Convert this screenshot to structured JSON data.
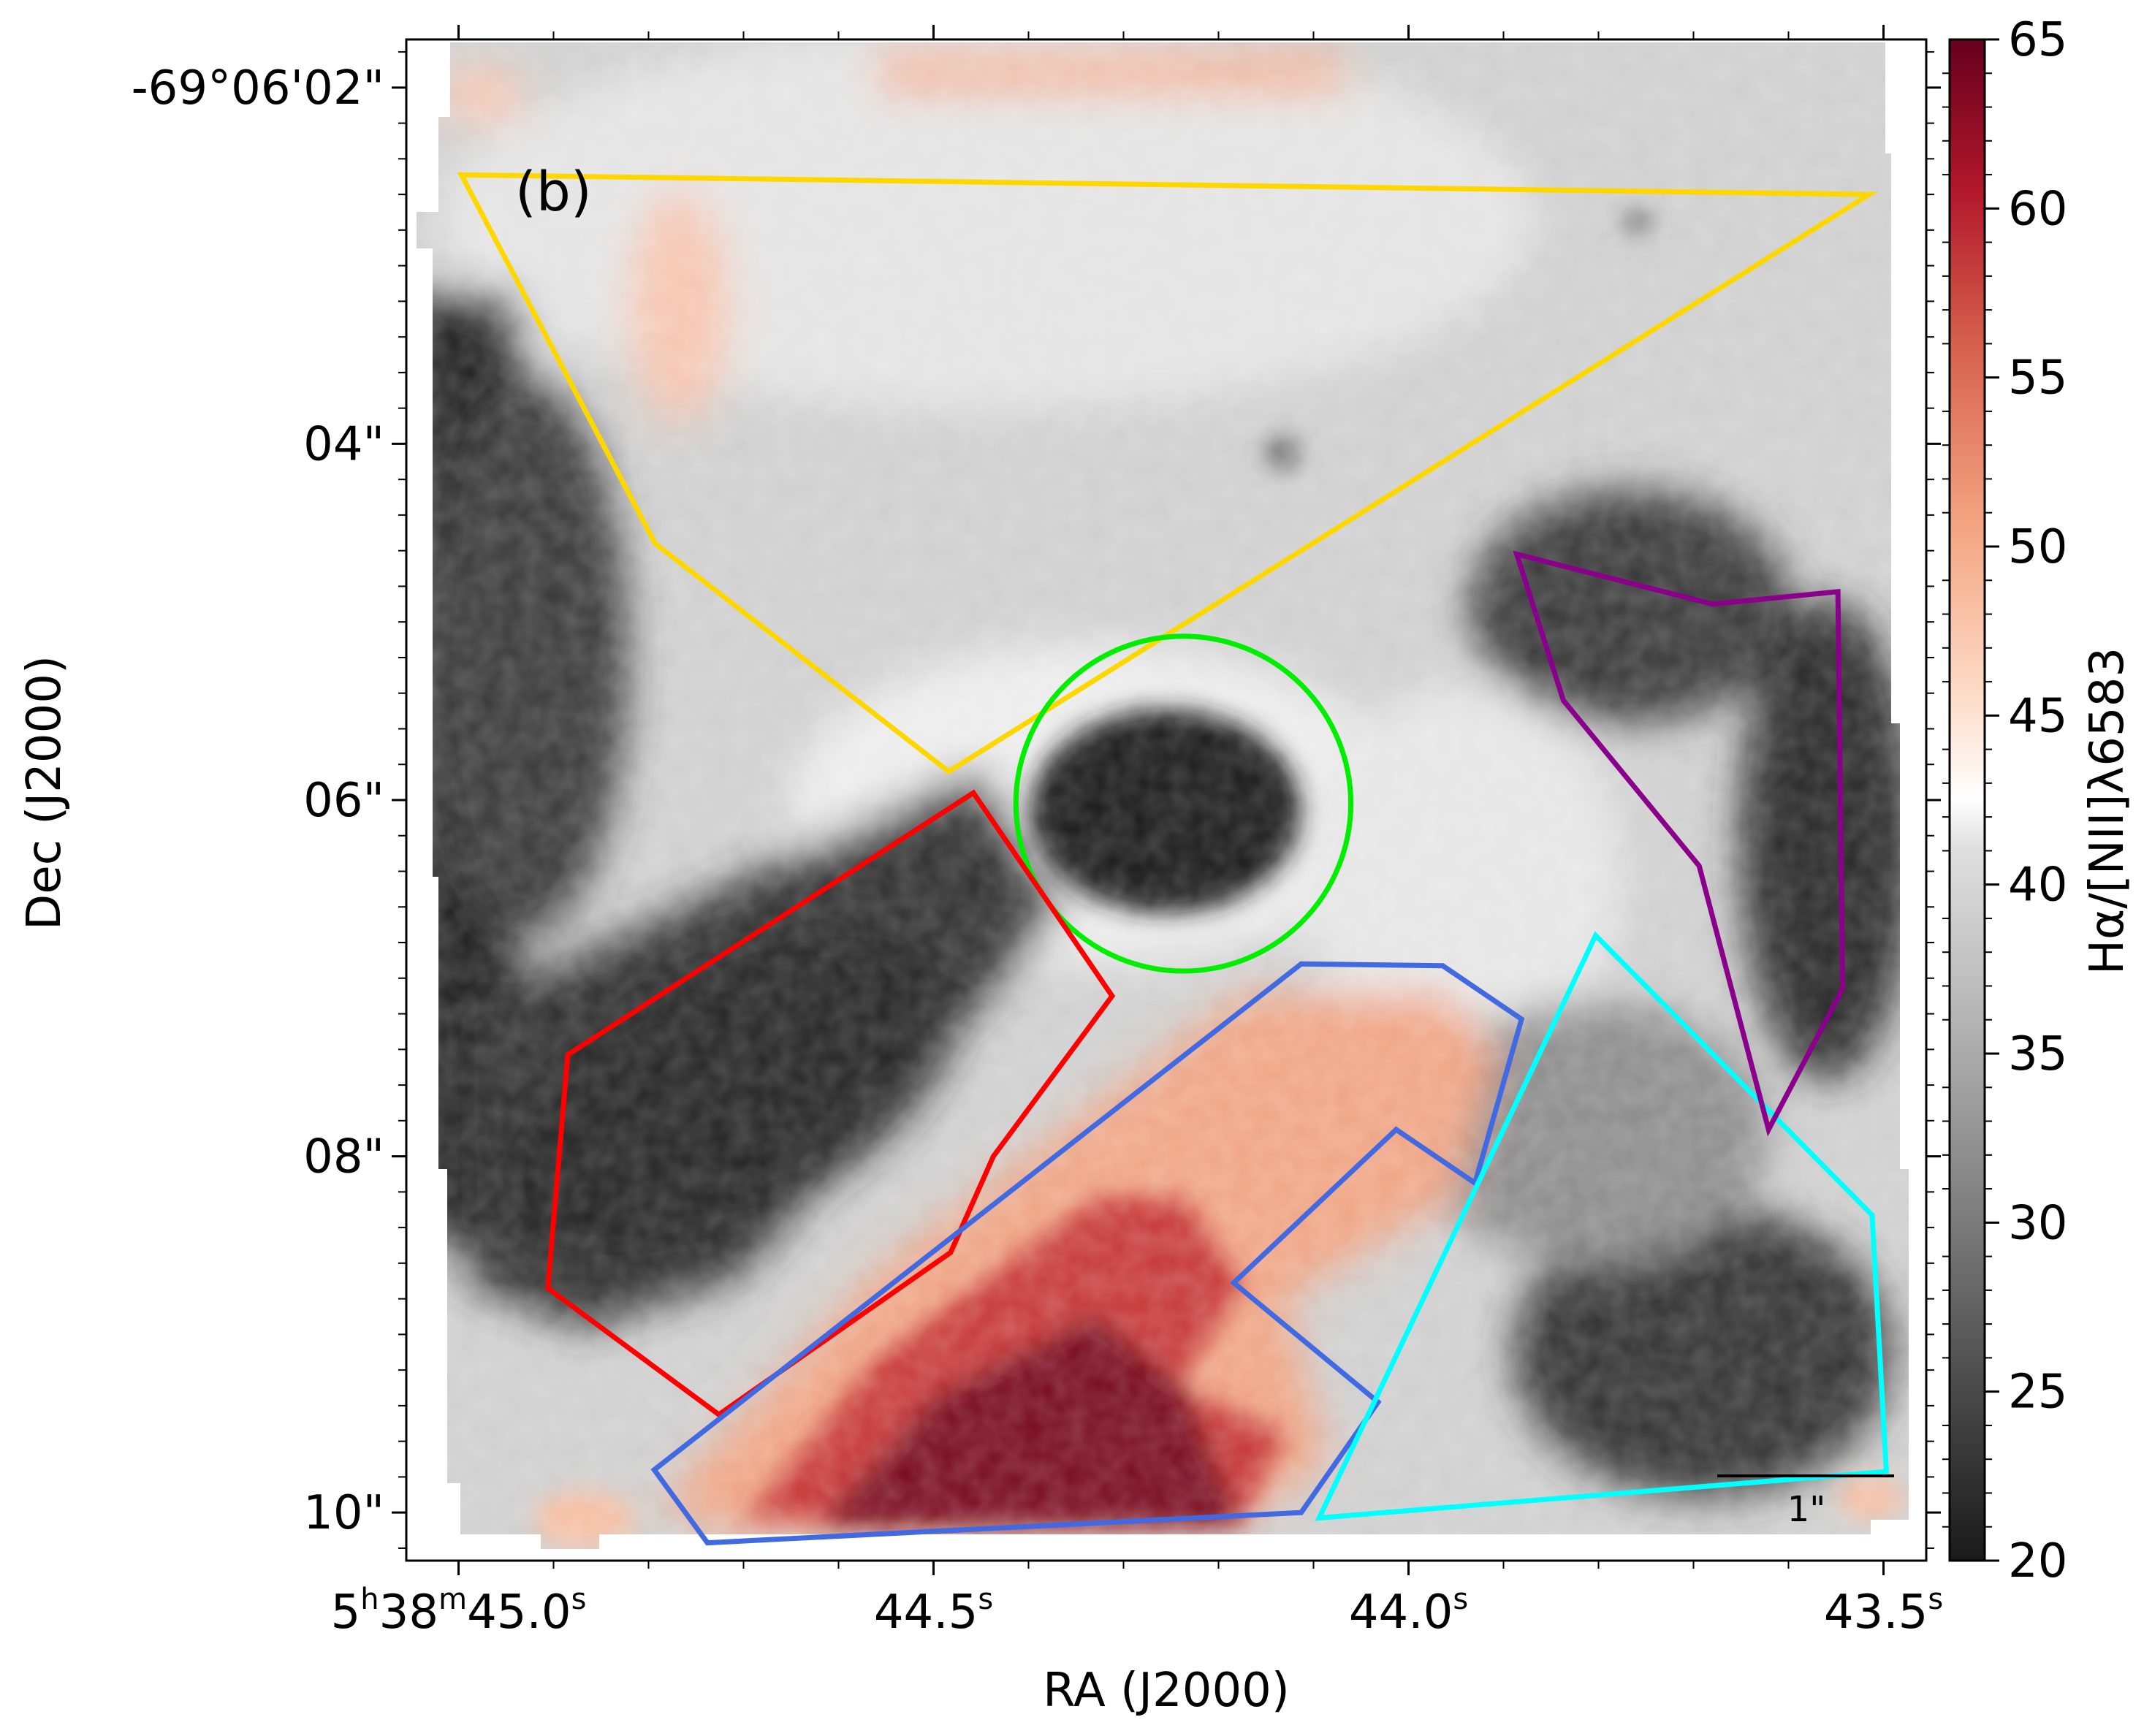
{
  "chart_data": {
    "type": "heatmap",
    "panel_label": "(b)",
    "xlabel": "RA (J2000)",
    "ylabel": "Dec (J2000)",
    "x_ticks": [
      {
        "value_s": 45.0,
        "label_parts": [
          [
            "5",
            "n"
          ],
          [
            "h",
            "sup"
          ],
          [
            "38",
            "n"
          ],
          [
            "m",
            "sup"
          ],
          [
            "45.0",
            "n"
          ],
          [
            "s",
            "sup"
          ]
        ]
      },
      {
        "value_s": 44.5,
        "label_parts": [
          [
            "44.5",
            "n"
          ],
          [
            "s",
            "sup"
          ]
        ]
      },
      {
        "value_s": 44.0,
        "label_parts": [
          [
            "44.0",
            "n"
          ],
          [
            "s",
            "sup"
          ]
        ]
      },
      {
        "value_s": 43.5,
        "label_parts": [
          [
            "43.5",
            "n"
          ],
          [
            "s",
            "sup"
          ]
        ]
      }
    ],
    "y_ticks": [
      {
        "value_arcsec": 2,
        "label": "-69°06'02\""
      },
      {
        "value_arcsec": 4,
        "label": "04\""
      },
      {
        "value_arcsec": 6,
        "label": "06\""
      },
      {
        "value_arcsec": 8,
        "label": "08\""
      },
      {
        "value_arcsec": 10,
        "label": "10\""
      }
    ],
    "xlim_s": [
      45.055,
      43.455
    ],
    "ylim_arcsec": [
      1.73,
      10.27
    ],
    "colorbar": {
      "label": "Hα/[NII]λ6583",
      "range": [
        20,
        65
      ],
      "ticks": [
        20,
        25,
        30,
        35,
        40,
        45,
        50,
        55,
        60,
        65
      ],
      "colormap": "RdGy_r",
      "stops": [
        [
          0.0,
          "#1a1a1a"
        ],
        [
          0.12,
          "#4d4d4d"
        ],
        [
          0.25,
          "#878787"
        ],
        [
          0.37,
          "#bababa"
        ],
        [
          0.47,
          "#e0e0e0"
        ],
        [
          0.5,
          "#ffffff"
        ],
        [
          0.57,
          "#fddbc7"
        ],
        [
          0.68,
          "#f4a582"
        ],
        [
          0.8,
          "#d6604d"
        ],
        [
          0.9,
          "#b2182b"
        ],
        [
          1.0,
          "#67001f"
        ]
      ]
    },
    "scale_bar": {
      "label": "1\""
    },
    "regions": [
      {
        "name": "yellow-region",
        "color": "#ffd700",
        "shape": "polygon",
        "points": [
          [
            44.997,
            2.49
          ],
          [
            44.793,
            4.56
          ],
          [
            44.484,
            5.84
          ],
          [
            43.515,
            2.6
          ]
        ]
      },
      {
        "name": "green-region",
        "color": "#00ee00",
        "shape": "circle",
        "center": [
          44.237,
          6.02
        ],
        "radius_arcsec": 0.94
      },
      {
        "name": "red-region",
        "color": "#ff0000",
        "shape": "polygon",
        "points": [
          [
            44.458,
            5.96
          ],
          [
            44.312,
            7.1
          ],
          [
            44.437,
            8.0
          ],
          [
            44.482,
            8.54
          ],
          [
            44.726,
            9.45
          ],
          [
            44.906,
            8.74
          ],
          [
            44.885,
            7.43
          ]
        ]
      },
      {
        "name": "blue-region",
        "color": "#4169e1",
        "shape": "polygon",
        "points": [
          [
            44.113,
            6.92
          ],
          [
            43.964,
            6.93
          ],
          [
            43.881,
            7.23
          ],
          [
            43.93,
            8.15
          ],
          [
            44.013,
            7.85
          ],
          [
            44.184,
            8.71
          ],
          [
            44.032,
            9.38
          ],
          [
            44.113,
            10.0
          ],
          [
            44.738,
            10.17
          ],
          [
            44.794,
            9.76
          ]
        ]
      },
      {
        "name": "cyan-region",
        "color": "#00ffff",
        "shape": "polygon",
        "points": [
          [
            43.803,
            6.76
          ],
          [
            43.512,
            8.33
          ],
          [
            43.497,
            9.77
          ],
          [
            44.094,
            10.03
          ]
        ]
      },
      {
        "name": "purple-region",
        "color": "#8b008b",
        "shape": "polygon",
        "points": [
          [
            43.886,
            4.62
          ],
          [
            43.837,
            5.44
          ],
          [
            43.694,
            6.37
          ],
          [
            43.621,
            7.85
          ],
          [
            43.543,
            7.06
          ],
          [
            43.548,
            4.83
          ],
          [
            43.68,
            4.9
          ]
        ]
      }
    ],
    "features": {
      "gray_background_level": 38,
      "dark_left_column": 21,
      "dark_blob_center": 21,
      "red_emission_peak": 65,
      "salmon_band_top": 46,
      "salmon_blob_upper_left": 45,
      "dark_right_ridge": 24,
      "dark_lower_right": 23
    }
  }
}
